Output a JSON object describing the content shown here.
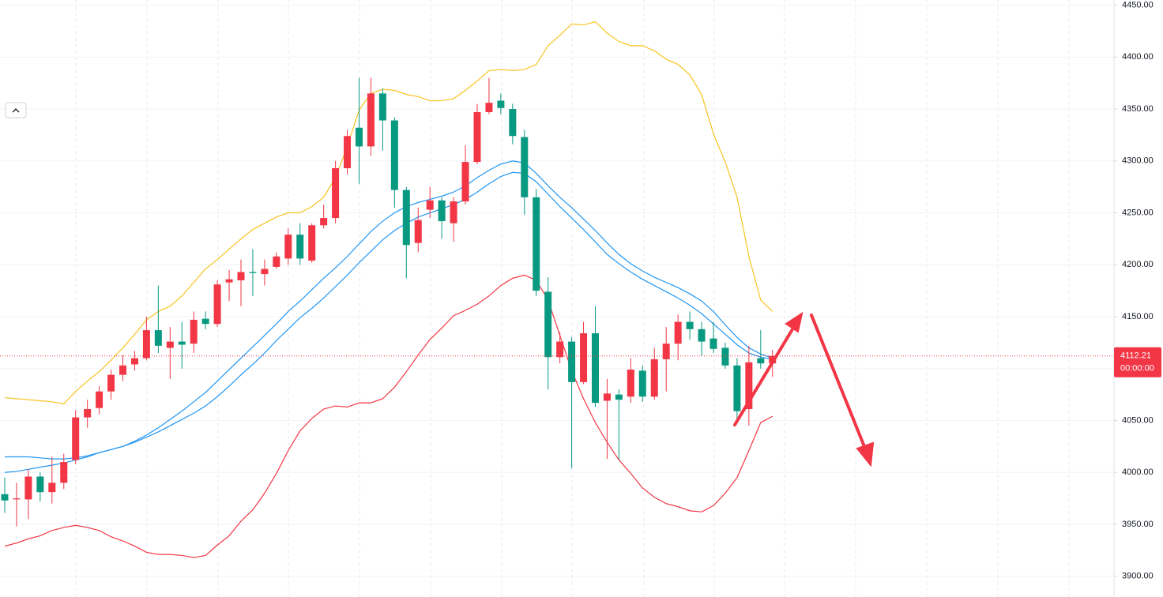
{
  "chart_data": {
    "type": "candlestick",
    "up_color": "#f23645",
    "down_color": "#089981",
    "open": [
      3979,
      3974,
      3974,
      3996,
      3981,
      3990,
      4012,
      4053,
      4062,
      4078,
      4094,
      4104,
      4110,
      4137,
      4120,
      4126,
      4124,
      4148,
      4143,
      4183,
      4185,
      4193,
      4191,
      4198,
      4206,
      4229,
      4204,
      4238,
      4245,
      4293,
      4332,
      4314,
      4365,
      4339,
      4272,
      4221,
      4253,
      4262,
      4240,
      4261,
      4299,
      4347,
      4358,
      4350,
      4323,
      4265,
      4174,
      4111,
      4126,
      4087,
      4134,
      4069,
      4075,
      4073,
      4098,
      4073,
      4109,
      4124,
      4145,
      4138,
      4129,
      4120,
      4103,
      4061,
      4110,
      4105
    ],
    "high": [
      3995,
      3990,
      4003,
      4000,
      4015,
      4018,
      4060,
      4070,
      4083,
      4099,
      4113,
      4117,
      4150,
      4180,
      4140,
      4145,
      4155,
      4155,
      4185,
      4195,
      4205,
      4215,
      4205,
      4212,
      4235,
      4240,
      4240,
      4258,
      4300,
      4330,
      4380,
      4380,
      4370,
      4342,
      4275,
      4255,
      4275,
      4265,
      4265,
      4315,
      4355,
      4380,
      4365,
      4355,
      4330,
      4273,
      4188,
      4135,
      4130,
      4145,
      4160,
      4090,
      4080,
      4110,
      4103,
      4120,
      4140,
      4152,
      4155,
      4145,
      4145,
      4125,
      4110,
      4122,
      4137,
      4118
    ],
    "low": [
      3961,
      3948,
      3955,
      3972,
      3970,
      3984,
      4008,
      4043,
      4056,
      4070,
      4088,
      4098,
      4108,
      4115,
      4090,
      4100,
      4115,
      4138,
      4140,
      4165,
      4160,
      4170,
      4180,
      4196,
      4200,
      4200,
      4202,
      4235,
      4240,
      4287,
      4278,
      4305,
      4310,
      4255,
      4187,
      4212,
      4245,
      4225,
      4222,
      4258,
      4297,
      4345,
      4345,
      4316,
      4248,
      4170,
      4080,
      4105,
      4004,
      4085,
      4063,
      4013,
      4012,
      4067,
      4068,
      4070,
      4078,
      4108,
      4128,
      4112,
      4115,
      4100,
      4047,
      4045,
      4100,
      4092
    ],
    "close": [
      3973,
      3975,
      3996,
      3981,
      3990,
      4010,
      4053,
      4061,
      4078,
      4094,
      4103,
      4110,
      4137,
      4122,
      4126,
      4123,
      4147,
      4143,
      4181,
      4186,
      4193,
      4192,
      4196,
      4208,
      4229,
      4206,
      4238,
      4245,
      4293,
      4324,
      4314,
      4365,
      4339,
      4272,
      4219,
      4243,
      4262,
      4242,
      4261,
      4299,
      4347,
      4356,
      4351,
      4324,
      4265,
      4175,
      4111,
      4126,
      4087,
      4134,
      4067,
      4076,
      4070,
      4099,
      4073,
      4109,
      4124,
      4145,
      4138,
      4126,
      4119,
      4103,
      4059,
      4106,
      4105,
      4112.21
    ],
    "series": [
      {
        "color": "#f7c31f",
        "values": [
          4072,
          4071,
          4070,
          4069,
          4068,
          4066,
          4078,
          4088,
          4097,
          4108,
          4120,
          4133,
          4147,
          4155,
          4160,
          4170,
          4183,
          4196,
          4205,
          4215,
          4225,
          4234,
          4240,
          4246,
          4250,
          4250,
          4256,
          4265,
          4284,
          4314,
          4349,
          4365,
          4369,
          4368,
          4364,
          4362,
          4358,
          4358,
          4360,
          4368,
          4377,
          4387,
          4388,
          4387,
          4388,
          4393,
          4411,
          4421,
          4432,
          4431,
          4434,
          4423,
          4415,
          4411,
          4411,
          4406,
          4398,
          4393,
          4383,
          4364,
          4326,
          4299,
          4265,
          4208,
          4166,
          4155
        ]
      },
      {
        "color": "#f23645",
        "values": [
          3929,
          3932,
          3936,
          3939,
          3944,
          3947,
          3949,
          3947,
          3944,
          3938,
          3934,
          3929,
          3923,
          3921,
          3921,
          3920,
          3918,
          3920,
          3930,
          3939,
          3953,
          3964,
          3980,
          3999,
          4021,
          4040,
          4052,
          4061,
          4064,
          4063,
          4067,
          4067,
          4071,
          4082,
          4097,
          4113,
          4128,
          4139,
          4151,
          4156,
          4162,
          4170,
          4180,
          4187,
          4190,
          4185,
          4166,
          4132,
          4098,
          4071,
          4048,
          4029,
          4012,
          3999,
          3985,
          3976,
          3970,
          3967,
          3963,
          3962,
          3968,
          3980,
          3995,
          4021,
          4048,
          4054
        ]
      },
      {
        "color": "#2196f3",
        "values": [
          4015,
          4015,
          4015,
          4014,
          4013,
          4013,
          4014,
          4016,
          4019,
          4022,
          4025,
          4030,
          4036,
          4043,
          4051,
          4059,
          4068,
          4077,
          4088,
          4099,
          4110,
          4121,
          4132,
          4143,
          4155,
          4165,
          4176,
          4187,
          4197,
          4208,
          4220,
          4232,
          4242,
          4250,
          4256,
          4260,
          4263,
          4266,
          4270,
          4276,
          4284,
          4291,
          4297,
          4300,
          4298,
          4288,
          4276,
          4265,
          4255,
          4244,
          4233,
          4221,
          4210,
          4201,
          4194,
          4188,
          4183,
          4178,
          4172,
          4165,
          4155,
          4142,
          4130,
          4120,
          4114,
          4110
        ]
      },
      {
        "color": "#2196f3",
        "values": [
          4000,
          4001,
          4003,
          4005,
          4007,
          4009,
          4012,
          4015,
          4019,
          4022,
          4025,
          4029,
          4034,
          4039,
          4045,
          4051,
          4057,
          4064,
          4073,
          4083,
          4094,
          4104,
          4115,
          4127,
          4138,
          4149,
          4158,
          4168,
          4179,
          4190,
          4202,
          4213,
          4224,
          4233,
          4240,
          4246,
          4250,
          4254,
          4258,
          4263,
          4270,
          4278,
          4285,
          4289,
          4288,
          4280,
          4268,
          4256,
          4245,
          4234,
          4222,
          4210,
          4201,
          4193,
          4186,
          4180,
          4174,
          4168,
          4161,
          4153,
          4143,
          4133,
          4123,
          4115,
          4111,
          4109
        ]
      }
    ],
    "ylim": [
      3880,
      4455
    ],
    "yticks": [
      {
        "value": 3900,
        "label": "3900.00"
      },
      {
        "value": 3950,
        "label": "3950.00"
      },
      {
        "value": 4000,
        "label": "4000.00"
      },
      {
        "value": 4050,
        "label": "4050.00"
      },
      {
        "value": 4100,
        "label": "4100.00"
      },
      {
        "value": 4150,
        "label": "4150.00"
      },
      {
        "value": 4200,
        "label": "4200.00"
      },
      {
        "value": 4250,
        "label": "4250.00"
      },
      {
        "value": 4300,
        "label": "4300.00"
      },
      {
        "value": 4350,
        "label": "4350.00"
      },
      {
        "value": 4400,
        "label": "4400.00"
      },
      {
        "value": 4450,
        "label": "4450.00"
      }
    ],
    "grid": true,
    "last_price": {
      "value": 4112.21,
      "label": "4112.21"
    },
    "countdown": "00:00:00"
  }
}
